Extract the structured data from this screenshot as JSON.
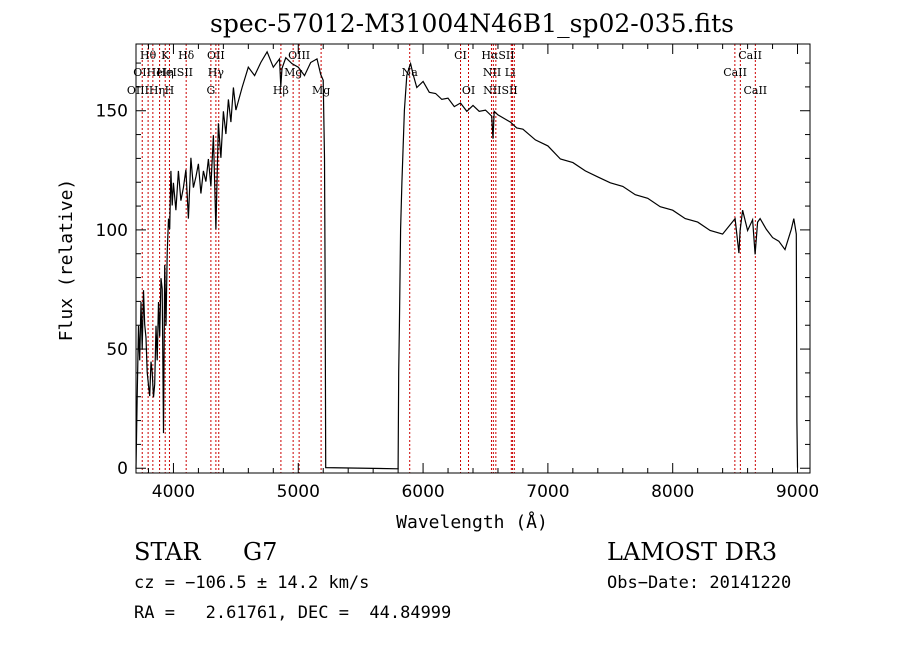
{
  "chart_data": {
    "type": "line",
    "title": "spec-57012-M31004N46B1_sp02-035.fits",
    "xlabel": "Wavelength (Å)",
    "ylabel": "Flux (relative)",
    "xlim": [
      3700,
      9100
    ],
    "ylim": [
      -2,
      178
    ],
    "xticks": [
      4000,
      5000,
      6000,
      7000,
      8000,
      9000
    ],
    "yticks": [
      0,
      50,
      100,
      150
    ],
    "grid": false,
    "series": [
      {
        "name": "flux",
        "x": [
          3700,
          3710,
          3720,
          3730,
          3740,
          3750,
          3760,
          3770,
          3780,
          3790,
          3800,
          3810,
          3820,
          3830,
          3840,
          3850,
          3860,
          3870,
          3880,
          3890,
          3900,
          3910,
          3920,
          3930,
          3940,
          3950,
          3960,
          3970,
          3980,
          3990,
          4000,
          4020,
          4040,
          4060,
          4080,
          4100,
          4120,
          4140,
          4160,
          4180,
          4200,
          4220,
          4240,
          4260,
          4280,
          4300,
          4320,
          4340,
          4360,
          4380,
          4400,
          4420,
          4440,
          4460,
          4480,
          4500,
          4550,
          4600,
          4650,
          4700,
          4750,
          4800,
          4850,
          4860,
          4870,
          4900,
          4950,
          5000,
          5050,
          5100,
          5150,
          5180,
          5200,
          5210,
          5215,
          5220,
          5800,
          5805,
          5810,
          5820,
          5830,
          5850,
          5870,
          5890,
          5900,
          5920,
          5950,
          6000,
          6050,
          6100,
          6150,
          6200,
          6250,
          6300,
          6350,
          6400,
          6450,
          6500,
          6550,
          6560,
          6570,
          6600,
          6650,
          6700,
          6750,
          6800,
          6900,
          7000,
          7100,
          7200,
          7300,
          7400,
          7500,
          7600,
          7700,
          7800,
          7900,
          8000,
          8100,
          8200,
          8300,
          8400,
          8500,
          8530,
          8540,
          8560,
          8600,
          8640,
          8660,
          8680,
          8700,
          8750,
          8800,
          8850,
          8900,
          8950,
          8970,
          8990,
          8995,
          9000
        ],
        "y": [
          0,
          30,
          60,
          45,
          70,
          50,
          75,
          60,
          55,
          40,
          35,
          30,
          45,
          40,
          30,
          35,
          60,
          45,
          70,
          55,
          80,
          75,
          15,
          85,
          60,
          90,
          105,
          100,
          125,
          110,
          120,
          108,
          125,
          112,
          118,
          125,
          105,
          130,
          118,
          122,
          128,
          115,
          125,
          120,
          130,
          118,
          140,
          100,
          145,
          130,
          150,
          140,
          155,
          145,
          160,
          150,
          160,
          168,
          165,
          170,
          175,
          168,
          172,
          160,
          168,
          172,
          170,
          168,
          165,
          170,
          172,
          165,
          163,
          130,
          80,
          0,
          0,
          40,
          60,
          100,
          120,
          150,
          165,
          168,
          170,
          165,
          160,
          162,
          158,
          157,
          155,
          155,
          152,
          153,
          150,
          152,
          150,
          150,
          148,
          138,
          150,
          148,
          147,
          145,
          143,
          142,
          138,
          135,
          130,
          128,
          125,
          122,
          120,
          118,
          115,
          113,
          110,
          108,
          105,
          103,
          100,
          98,
          105,
          90,
          100,
          108,
          100,
          104,
          90,
          103,
          105,
          100,
          97,
          95,
          92,
          100,
          105,
          98,
          20,
          0
        ]
      }
    ],
    "line_markers": [
      {
        "label": "Hθ",
        "x": 3797,
        "row": 0
      },
      {
        "label": "K",
        "x": 3934,
        "row": 0
      },
      {
        "label": "Hδ",
        "x": 4102,
        "row": 0
      },
      {
        "label": "OII",
        "x": 4340,
        "row": 0
      },
      {
        "label": "OIII",
        "x": 5007,
        "row": 0
      },
      {
        "label": "CI",
        "x": 6300,
        "row": 0
      },
      {
        "label": "HαSII",
        "x": 6600,
        "row": 0
      },
      {
        "label": "CaII",
        "x": 8620,
        "row": 0
      },
      {
        "label": "OIHeIη",
        "x": 3840,
        "row": 1
      },
      {
        "label": "HeISII",
        "x": 4010,
        "row": 1
      },
      {
        "label": "Hγ",
        "x": 4340,
        "row": 1
      },
      {
        "label": "Mg",
        "x": 4960,
        "row": 1
      },
      {
        "label": "Na",
        "x": 5893,
        "row": 1
      },
      {
        "label": "NII Li",
        "x": 6610,
        "row": 1
      },
      {
        "label": "CaII",
        "x": 8500,
        "row": 1
      },
      {
        "label": "OIIIHη",
        "x": 3780,
        "row": 2
      },
      {
        "label": "H",
        "x": 3968,
        "row": 2
      },
      {
        "label": "G",
        "x": 4300,
        "row": 2
      },
      {
        "label": "Hβ",
        "x": 4861,
        "row": 2
      },
      {
        "label": "Mg",
        "x": 5183,
        "row": 2
      },
      {
        "label": "OI",
        "x": 6364,
        "row": 2
      },
      {
        "label": "NIISII",
        "x": 6620,
        "row": 2
      },
      {
        "label": "CaII",
        "x": 8662,
        "row": 2
      }
    ],
    "marker_lines_x": [
      3750,
      3797,
      3835,
      3889,
      3934,
      3968,
      4102,
      4300,
      4340,
      4363,
      4861,
      4959,
      5007,
      5183,
      5893,
      6300,
      6364,
      6548,
      6563,
      6583,
      6707,
      6716,
      6731,
      8498,
      8542,
      8662
    ],
    "marker_color": "#cc0000"
  },
  "info": {
    "class_label": "STAR",
    "subclass": "G7",
    "survey": "LAMOST DR3",
    "cz": "cz = −106.5 ± 14.2 km/s",
    "obs_date": "Obs−Date: 20141220",
    "coords": "RA =   2.61761, DEC =  44.84999"
  }
}
